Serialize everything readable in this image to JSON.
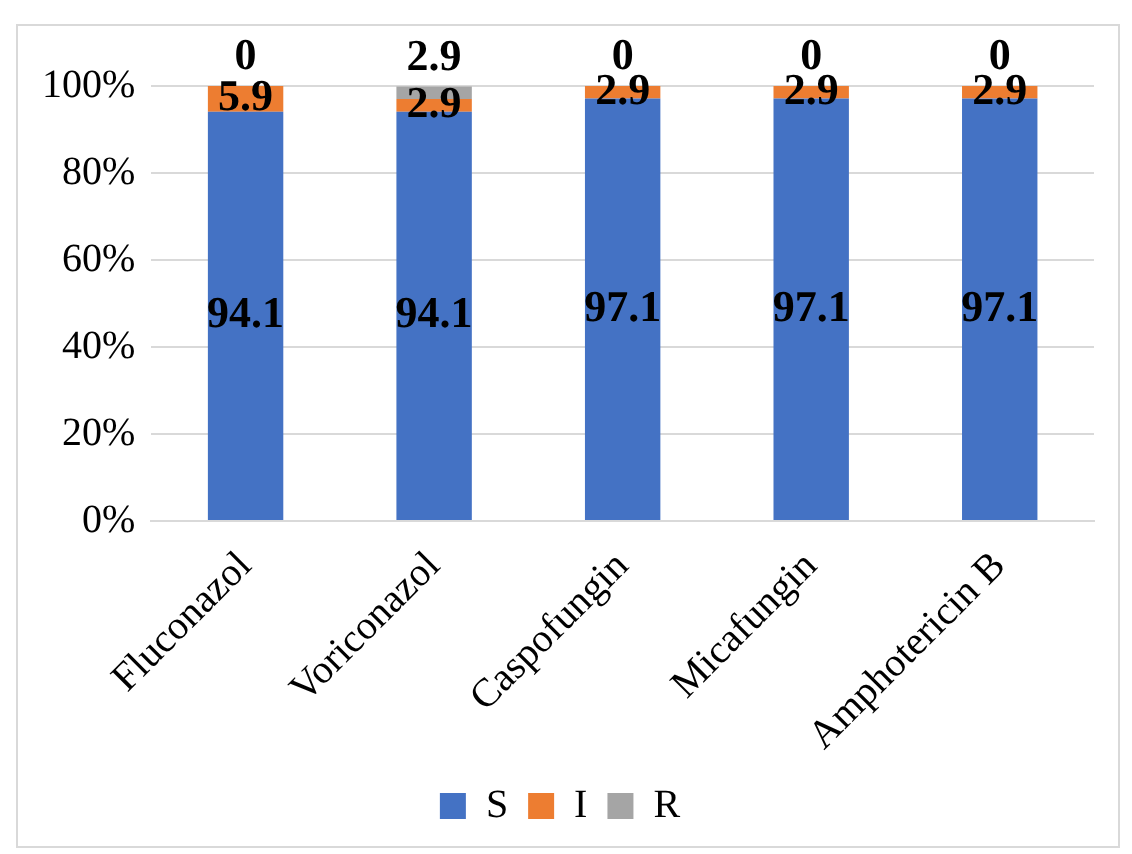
{
  "chart_data": {
    "type": "bar",
    "stacked": true,
    "categories": [
      "Fluconazol",
      "Voriconazol",
      "Caspofungin",
      "Micafungin",
      "Amphotericin B"
    ],
    "series": [
      {
        "name": "S",
        "color": "#4472c4",
        "values": [
          94.1,
          94.1,
          97.1,
          97.1,
          97.1
        ]
      },
      {
        "name": "I",
        "color": "#ed7d31",
        "values": [
          5.9,
          2.9,
          2.9,
          2.9,
          2.9
        ]
      },
      {
        "name": "R",
        "color": "#a5a5a5",
        "values": [
          0,
          2.9,
          0,
          0,
          0
        ]
      }
    ],
    "ylim": [
      0,
      100
    ],
    "yticks": [
      {
        "value": 0,
        "label": "0%"
      },
      {
        "value": 20,
        "label": "20%"
      },
      {
        "value": 40,
        "label": "40%"
      },
      {
        "value": 60,
        "label": "60%"
      },
      {
        "value": 80,
        "label": "80%"
      },
      {
        "value": 100,
        "label": "100%"
      }
    ],
    "grid": "y",
    "legend": "bottom",
    "data_labels": true
  }
}
